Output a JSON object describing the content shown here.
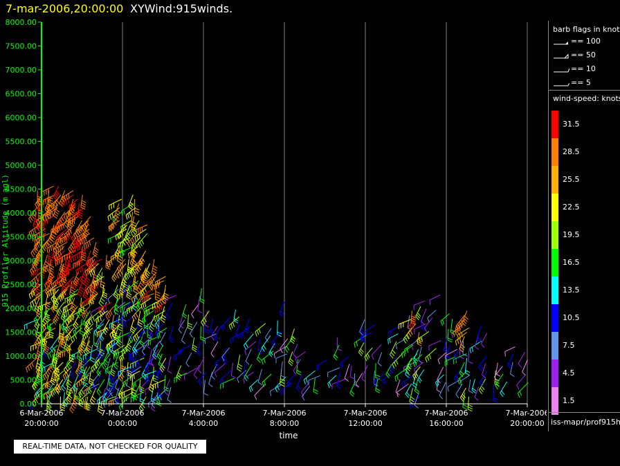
{
  "header": {
    "time_text": "7-mar-2006,20:00:00",
    "title": "XYWind:915winds."
  },
  "chart_data": {
    "type": "scatter",
    "title": "XYWind:915winds.",
    "xlabel": "time",
    "ylabel": "915 Profiler Altitude (m agl)",
    "x_ticks": [
      {
        "line1": "6-Mar-2006",
        "line2": "20:00:00",
        "t": 0
      },
      {
        "line1": "7-Mar-2006",
        "line2": "0:00:00",
        "t": 4
      },
      {
        "line1": "7-Mar-2006",
        "line2": "4:00:00",
        "t": 8
      },
      {
        "line1": "7-Mar-2006",
        "line2": "8:00:00",
        "t": 12
      },
      {
        "line1": "7-Mar-2006",
        "line2": "12:00:00",
        "t": 16
      },
      {
        "line1": "7-Mar-2006",
        "line2": "16:00:00",
        "t": 20
      },
      {
        "line1": "7-Mar-2006",
        "line2": "20:00:00",
        "t": 24
      }
    ],
    "y_ticks": [
      "0.00",
      "500.00",
      "1000.00",
      "1500.00",
      "2000.00",
      "2500.00",
      "3000.00",
      "3500.00",
      "4000.00",
      "4500.00",
      "5000.00",
      "5500.00",
      "6000.00",
      "6500.00",
      "7000.00",
      "7500.00",
      "8000.00"
    ],
    "ylim": [
      0,
      8000
    ],
    "grid": "vertical",
    "series": [
      {
        "t": 0.0,
        "max_alt": 4550,
        "profile": "strong-aloft"
      },
      {
        "t": 0.5,
        "max_alt": 4600,
        "profile": "strong-aloft"
      },
      {
        "t": 1.0,
        "max_alt": 4600,
        "profile": "strong-aloft"
      },
      {
        "t": 1.5,
        "max_alt": 4550,
        "profile": "strong-aloft"
      },
      {
        "t": 2.0,
        "max_alt": 4400,
        "profile": "strong-aloft"
      },
      {
        "t": 2.5,
        "max_alt": 4000,
        "profile": "strong-aloft"
      },
      {
        "t": 3.0,
        "max_alt": 3200,
        "profile": "mixed"
      },
      {
        "t": 3.5,
        "max_alt": 2200,
        "profile": "mixed"
      },
      {
        "t": 4.0,
        "max_alt": 4300,
        "profile": "mid"
      },
      {
        "t": 4.5,
        "max_alt": 4400,
        "profile": "mid"
      },
      {
        "t": 5.0,
        "max_alt": 3900,
        "profile": "mid"
      },
      {
        "t": 5.5,
        "max_alt": 3100,
        "profile": "mixed"
      },
      {
        "t": 6.0,
        "max_alt": 2700,
        "profile": "mixed"
      },
      {
        "t": 6.5,
        "max_alt": 2400,
        "profile": "weak"
      },
      {
        "t": 7.0,
        "max_alt": 2200,
        "profile": "weak"
      },
      {
        "t": 7.5,
        "max_alt": 2000,
        "profile": "weak"
      },
      {
        "t": 8.0,
        "max_alt": 2500,
        "profile": "weak"
      },
      {
        "t": 8.5,
        "max_alt": 2200,
        "profile": "weak"
      },
      {
        "t": 9.0,
        "max_alt": 2100,
        "profile": "weak"
      },
      {
        "t": 9.5,
        "max_alt": 2000,
        "profile": "weak"
      },
      {
        "t": 10.0,
        "max_alt": 1900,
        "profile": "weak"
      },
      {
        "t": 10.5,
        "max_alt": 1800,
        "profile": "weak"
      },
      {
        "t": 11.0,
        "max_alt": 1700,
        "profile": "weak"
      },
      {
        "t": 11.5,
        "max_alt": 2100,
        "profile": "weak"
      },
      {
        "t": 12.0,
        "max_alt": 2200,
        "profile": "weak"
      },
      {
        "t": 12.5,
        "max_alt": 1600,
        "profile": "weak"
      },
      {
        "t": 13.0,
        "max_alt": 1300,
        "profile": "weak"
      },
      {
        "t": 13.5,
        "max_alt": 1000,
        "profile": "weak"
      },
      {
        "t": 14.0,
        "max_alt": 1000,
        "profile": "weak"
      },
      {
        "t": 14.5,
        "max_alt": 1500,
        "profile": "weak"
      },
      {
        "t": 15.0,
        "max_alt": 1100,
        "profile": "weak"
      },
      {
        "t": 15.5,
        "max_alt": 1000,
        "profile": "weak"
      },
      {
        "t": 16.0,
        "max_alt": 1800,
        "profile": "weak"
      },
      {
        "t": 16.5,
        "max_alt": 1700,
        "profile": "weak"
      },
      {
        "t": 17.0,
        "max_alt": 1600,
        "profile": "weak"
      },
      {
        "t": 17.5,
        "max_alt": 2100,
        "profile": "weak"
      },
      {
        "t": 18.0,
        "max_alt": 2000,
        "profile": "weak"
      },
      {
        "t": 18.5,
        "max_alt": 2100,
        "profile": "mixed"
      },
      {
        "t": 19.0,
        "max_alt": 2200,
        "profile": "weak"
      },
      {
        "t": 19.5,
        "max_alt": 2300,
        "profile": "weak"
      },
      {
        "t": 20.0,
        "max_alt": 1900,
        "profile": "weak"
      },
      {
        "t": 20.5,
        "max_alt": 2100,
        "profile": "weak"
      },
      {
        "t": 21.0,
        "max_alt": 2000,
        "profile": "mixed"
      },
      {
        "t": 21.5,
        "max_alt": 1700,
        "profile": "weak"
      },
      {
        "t": 22.0,
        "max_alt": 1500,
        "profile": "weak"
      },
      {
        "t": 22.5,
        "max_alt": 900,
        "profile": "weak"
      },
      {
        "t": 23.0,
        "max_alt": 1100,
        "profile": "weak"
      },
      {
        "t": 23.5,
        "max_alt": 1200,
        "profile": "weak"
      },
      {
        "t": 24.0,
        "max_alt": 1200,
        "profile": "weak"
      }
    ]
  },
  "legend": {
    "barb_title": "barb flags in knots",
    "flags": [
      {
        "label": "== 100",
        "kind": "pennant"
      },
      {
        "label": "== 50",
        "kind": "triangle"
      },
      {
        "label": "== 10",
        "kind": "full"
      },
      {
        "label": "== 5",
        "kind": "half"
      }
    ],
    "speed_title": "wind-speed: knots",
    "colorbar": [
      {
        "value": "31.5",
        "color": "#ff0000"
      },
      {
        "value": "28.5",
        "color": "#ff8000"
      },
      {
        "value": "25.5",
        "color": "#ffb000"
      },
      {
        "value": "22.5",
        "color": "#ffff00"
      },
      {
        "value": "19.5",
        "color": "#a0ff00"
      },
      {
        "value": "16.5",
        "color": "#00ff00"
      },
      {
        "value": "13.5",
        "color": "#00ffff"
      },
      {
        "value": "10.5",
        "color": "#0000ff"
      },
      {
        "value": "7.5",
        "color": "#6495ed"
      },
      {
        "value": "4.5",
        "color": "#a020f0"
      },
      {
        "value": "1.5",
        "color": "#ee82ee"
      }
    ],
    "source": "iss-mapr/prof915h"
  },
  "notice": "REAL-TIME DATA, NOT CHECKED FOR QUALITY",
  "colors": {
    "axis": "#00ff00",
    "grid": "#808080",
    "header_time": "#ffff00"
  }
}
